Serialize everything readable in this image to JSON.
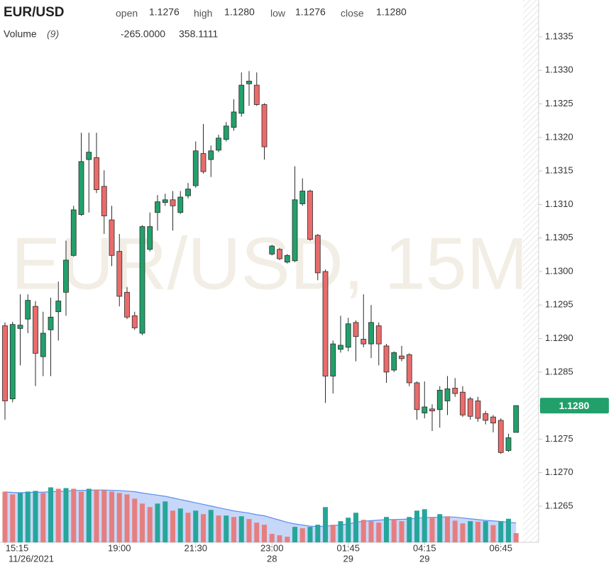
{
  "chart_data": {
    "type": "candlestick",
    "title": "EUR/USD",
    "watermark": "EUR/USD, 15M",
    "ohlc_names": [
      "open",
      "high",
      "low",
      "close"
    ],
    "last_labels": {
      "open": "1.1276",
      "high": "1.1280",
      "low": "1.1276",
      "close": "1.1280"
    },
    "volume_title": "Volume",
    "volume_period": "(9)",
    "volume_change": {
      "value": -265,
      "label": "-265.0000"
    },
    "volume_ma_label": "358.1111",
    "categories": [
      "15:15",
      null,
      null,
      null,
      null,
      null,
      null,
      null,
      null,
      null,
      null,
      null,
      null,
      null,
      null,
      "19:00",
      null,
      null,
      null,
      null,
      null,
      null,
      null,
      null,
      null,
      "21:30",
      null,
      null,
      null,
      null,
      null,
      null,
      null,
      null,
      null,
      "23:00",
      null,
      null,
      null,
      null,
      null,
      null,
      null,
      null,
      null,
      "01:45",
      null,
      null,
      null,
      null,
      null,
      null,
      null,
      null,
      null,
      "04:15",
      null,
      null,
      null,
      null,
      null,
      null,
      null,
      null,
      null,
      "06:45",
      null,
      null
    ],
    "sublabels": [
      "11/26/2021",
      null,
      null,
      null,
      null,
      null,
      null,
      null,
      null,
      null,
      null,
      null,
      null,
      null,
      null,
      null,
      null,
      null,
      null,
      null,
      null,
      null,
      null,
      null,
      null,
      null,
      null,
      null,
      null,
      null,
      null,
      null,
      null,
      null,
      null,
      "28",
      null,
      null,
      null,
      null,
      null,
      null,
      null,
      null,
      null,
      "29",
      null,
      null,
      null,
      null,
      null,
      null,
      null,
      null,
      null,
      "29",
      null,
      null,
      null,
      null,
      null,
      null,
      null,
      null,
      null,
      null,
      null,
      null
    ],
    "open": [
      1.12919,
      1.1281,
      1.12915,
      1.12929,
      1.12948,
      1.12873,
      1.12913,
      1.1294,
      1.12969,
      1.13024,
      1.13085,
      1.13167,
      1.1317,
      1.13127,
      1.13077,
      1.1303,
      1.12969,
      1.12934,
      1.12908,
      1.13033,
      1.13088,
      1.13103,
      1.13107,
      1.13088,
      1.13113,
      1.13128,
      1.13176,
      1.13167,
      1.13181,
      1.13197,
      1.13215,
      1.13236,
      1.1328,
      1.13278,
      1.13249,
      1.13026,
      1.13033,
      1.13014,
      1.13016,
      1.13101,
      1.1312,
      1.13054,
      1.13,
      1.12844,
      1.12884,
      1.12887,
      1.12924,
      1.12899,
      1.12892,
      1.12919,
      1.12889,
      1.12853,
      1.12874,
      1.12876,
      1.12834,
      1.12789,
      1.12795,
      1.12794,
      1.12807,
      1.12826,
      1.1282,
      1.1281,
      1.12807,
      1.12788,
      1.12783,
      1.12778,
      1.12733,
      1.1276
    ],
    "high": [
      1.12924,
      1.12925,
      1.12966,
      1.12966,
      1.12956,
      1.1294,
      1.12961,
      1.12985,
      1.13046,
      1.13098,
      1.13207,
      1.13207,
      1.13207,
      1.13151,
      1.13098,
      1.13056,
      1.12977,
      1.1294,
      1.13069,
      1.13088,
      1.13114,
      1.13116,
      1.1312,
      1.1312,
      1.13132,
      1.13194,
      1.1322,
      1.13188,
      1.13204,
      1.13223,
      1.13257,
      1.13297,
      1.13299,
      1.13297,
      1.13251,
      1.1304,
      1.13035,
      1.13026,
      1.13157,
      1.13139,
      1.13122,
      1.13056,
      1.13003,
      1.12897,
      1.12934,
      1.12931,
      1.12927,
      1.12966,
      1.1295,
      1.12924,
      1.12892,
      1.12881,
      1.12889,
      1.12878,
      1.12836,
      1.12836,
      1.12802,
      1.12829,
      1.12844,
      1.12841,
      1.12829,
      1.12813,
      1.12813,
      1.12792,
      1.12786,
      1.12781,
      1.12758,
      1.128
    ],
    "low": [
      1.12779,
      1.12805,
      1.1286,
      1.12908,
      1.12829,
      1.12844,
      1.12844,
      1.12897,
      1.12934,
      1.13022,
      1.13083,
      1.13088,
      1.13117,
      1.13056,
      1.13008,
      1.12948,
      1.12929,
      1.12913,
      1.12905,
      1.1303,
      1.13061,
      1.13098,
      1.13061,
      1.13086,
      1.13109,
      1.13125,
      1.13146,
      1.13141,
      1.13178,
      1.13194,
      1.1321,
      1.13231,
      1.13247,
      1.13247,
      1.13167,
      1.13024,
      1.13017,
      1.13012,
      1.13014,
      1.13098,
      1.13046,
      1.12987,
      1.12804,
      1.12818,
      1.12879,
      1.12881,
      1.12866,
      1.12887,
      1.12871,
      1.1286,
      1.12834,
      1.1285,
      1.12866,
      1.12829,
      1.12779,
      1.12781,
      1.12762,
      1.12767,
      1.12786,
      1.12813,
      1.12783,
      1.12779,
      1.12776,
      1.12772,
      1.1276,
      1.12728,
      1.12731,
      1.1276
    ],
    "close": [
      1.12807,
      1.12921,
      1.1292,
      1.12957,
      1.12878,
      1.12908,
      1.12932,
      1.12956,
      1.13017,
      1.13092,
      1.13164,
      1.13178,
      1.13122,
      1.13083,
      1.13024,
      1.12963,
      1.12932,
      1.12916,
      1.13067,
      1.13067,
      1.13104,
      1.13107,
      1.13098,
      1.13111,
      1.13123,
      1.1318,
      1.13149,
      1.1318,
      1.13199,
      1.13217,
      1.13238,
      1.13278,
      1.13284,
      1.13249,
      1.13186,
      1.13038,
      1.13019,
      1.13024,
      1.13107,
      1.1312,
      1.13048,
      1.12998,
      1.12844,
      1.12892,
      1.1289,
      1.12922,
      1.12903,
      1.12892,
      1.12924,
      1.12892,
      1.1285,
      1.12879,
      1.1287,
      1.12834,
      1.12794,
      1.12798,
      1.12792,
      1.12823,
      1.12825,
      1.12818,
      1.12786,
      1.12784,
      1.12781,
      1.12778,
      1.12774,
      1.1273,
      1.12752,
      1.128
    ],
    "volume": [
      936,
      884,
      910,
      936,
      949,
      910,
      1014,
      988,
      1001,
      988,
      936,
      988,
      975,
      962,
      936,
      910,
      884,
      806,
      715,
      650,
      715,
      754,
      585,
      624,
      546,
      585,
      520,
      598,
      494,
      494,
      468,
      481,
      429,
      364,
      325,
      156,
      130,
      104,
      286,
      260,
      286,
      325,
      650,
      325,
      390,
      455,
      546,
      416,
      390,
      364,
      468,
      416,
      390,
      468,
      585,
      611,
      455,
      520,
      481,
      400,
      350,
      390,
      380,
      390,
      318,
      390,
      435,
      170
    ],
    "volume_ma": [
      930,
      920,
      915,
      920,
      925,
      925,
      935,
      940,
      945,
      955,
      960,
      960,
      965,
      965,
      960,
      955,
      945,
      935,
      910,
      890,
      870,
      850,
      820,
      790,
      760,
      730,
      700,
      670,
      640,
      610,
      580,
      560,
      540,
      510,
      490,
      450,
      410,
      370,
      340,
      320,
      300,
      290,
      300,
      310,
      320,
      340,
      370,
      390,
      400,
      410,
      420,
      420,
      425,
      430,
      445,
      460,
      460,
      465,
      470,
      465,
      450,
      435,
      420,
      405,
      395,
      385,
      370,
      358.1111
    ],
    "ylim": [
      1.12596,
      1.13405
    ],
    "yticks": [
      1.1265,
      {
        "value": 1.127,
        "label": "1.1270"
      },
      1.1275,
      {
        "value": 1.128,
        "label": "1.1280"
      },
      1.1285,
      {
        "value": 1.129,
        "label": "1.1290"
      },
      1.1295,
      {
        "value": 1.13,
        "label": "1.1300"
      },
      1.1305,
      {
        "value": 1.131,
        "label": "1.1310"
      },
      1.1315,
      {
        "value": 1.132,
        "label": "1.1320"
      },
      1.1325,
      {
        "value": 1.133,
        "label": "1.1330"
      },
      1.1335
    ],
    "volume_lim": [
      0,
      10000
    ],
    "up_color": "#22a06b",
    "down_color": "#ea6b6b",
    "volume_up_color": "#26a69a",
    "volume_down_color": "#e57f7f",
    "volume_ma_color": "#5b8def",
    "grid": false
  }
}
